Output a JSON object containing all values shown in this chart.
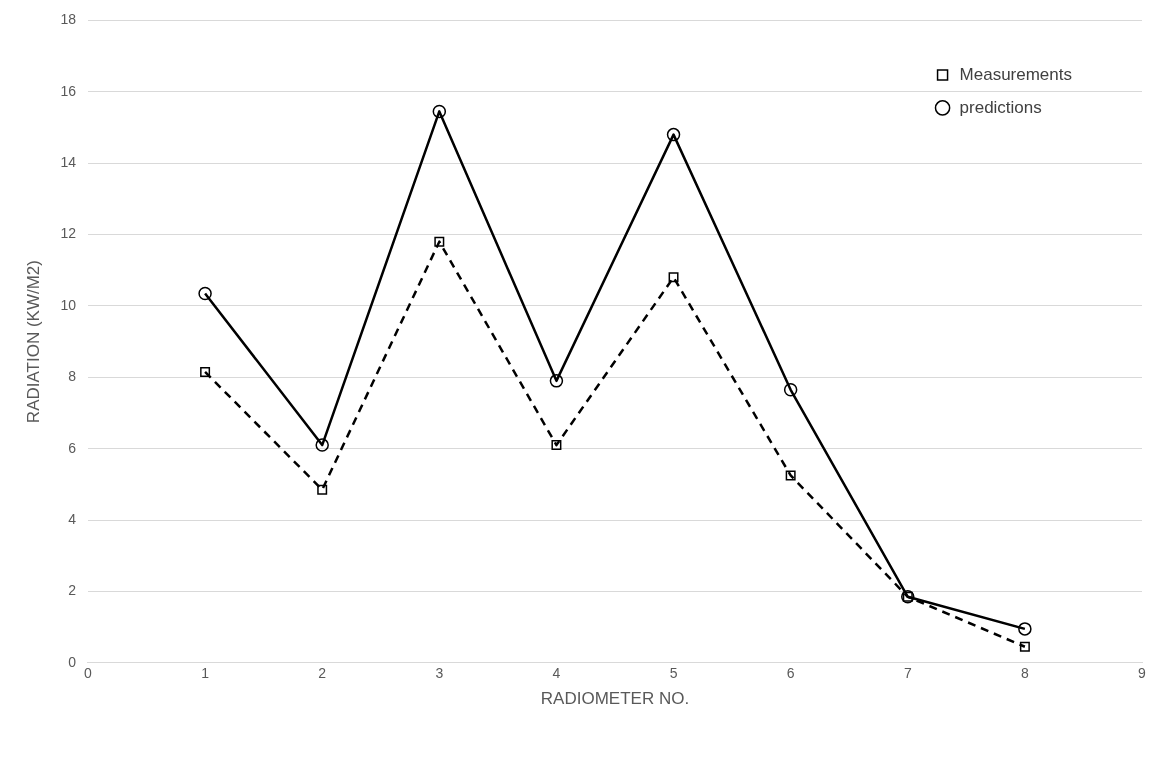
{
  "chart_data": {
    "type": "line",
    "xlabel": "RADIOMETER NO.",
    "ylabel": "RADIATION (KW/M2)",
    "x": [
      1,
      2,
      3,
      4,
      5,
      6,
      7,
      8
    ],
    "series": [
      {
        "name": "Measurements",
        "color": "#000000",
        "values": [
          8.15,
          4.85,
          11.8,
          6.1,
          10.8,
          5.25,
          1.85,
          0.45
        ],
        "marker": "square",
        "line_style": "dashed"
      },
      {
        "name": "predictions",
        "color": "#000000",
        "values": [
          10.35,
          6.1,
          15.45,
          7.9,
          14.8,
          7.65,
          1.85,
          0.95
        ],
        "marker": "circle",
        "line_style": "solid"
      }
    ],
    "xlim": [
      0,
      9
    ],
    "xticks": [
      0,
      1,
      2,
      3,
      4,
      5,
      6,
      7,
      8,
      9
    ],
    "ylim": [
      0,
      18
    ],
    "yticks": [
      0,
      2,
      4,
      6,
      8,
      10,
      12,
      14,
      16,
      18
    ],
    "grid": "y",
    "legend": "top right"
  }
}
